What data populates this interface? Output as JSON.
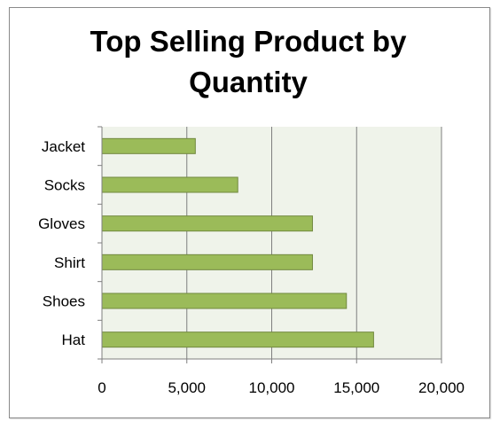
{
  "chart_data": {
    "type": "bar",
    "orientation": "horizontal",
    "title_line1": "Top Selling Product by",
    "title_line2": "Quantity",
    "categories": [
      "Jacket",
      "Socks",
      "Gloves",
      "Shirt",
      "Shoes",
      "Hat"
    ],
    "values": [
      5500,
      8000,
      12400,
      12400,
      14400,
      16000
    ],
    "xlim": [
      0,
      20000
    ],
    "xticks": [
      "0",
      "5,000",
      "10,000",
      "15,000",
      "20,000"
    ],
    "xtick_values": [
      0,
      5000,
      10000,
      15000,
      20000
    ],
    "grid": true,
    "legend": "none",
    "bar_color": "#9bbb59",
    "bar_edge_color": "#71893f",
    "plot_bg": "#eff3ea"
  }
}
